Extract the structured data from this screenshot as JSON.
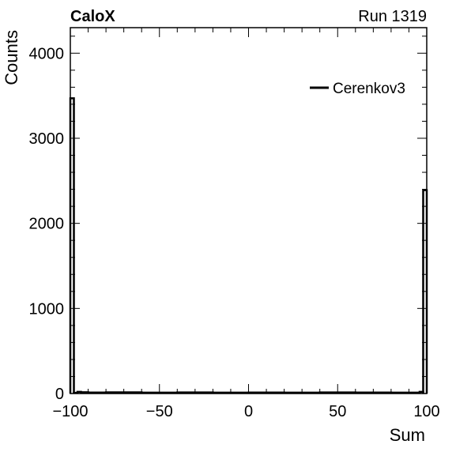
{
  "header": {
    "title": "CaloX",
    "run_label": "Run 1319"
  },
  "chart_data": {
    "type": "histogram",
    "title": "CaloX",
    "xlabel": "Sum",
    "ylabel": "Counts",
    "xlim": [
      -100,
      100
    ],
    "ylim": [
      0,
      4300
    ],
    "x_ticks": [
      -100,
      -50,
      0,
      50,
      100
    ],
    "x_tick_labels": [
      "−100",
      "−50",
      "0",
      "50",
      "100"
    ],
    "y_ticks": [
      0,
      1000,
      2000,
      3000,
      4000
    ],
    "y_tick_labels": [
      "0",
      "1000",
      "2000",
      "3000",
      "4000"
    ],
    "grid": false,
    "legend": {
      "position": "top-right",
      "entries": [
        "Cerenkov3"
      ]
    },
    "series": [
      {
        "name": "Cerenkov3",
        "color": "#000000",
        "bins": [
          {
            "x0": -100,
            "x1": -98,
            "value": 3470
          },
          {
            "x0": -98,
            "x1": -96,
            "value": 8
          },
          {
            "x0": -96,
            "x1": -94,
            "value": 20
          },
          {
            "x0": -94,
            "x1": -90,
            "value": 15
          },
          {
            "x0": -90,
            "x1": -80,
            "value": 12
          },
          {
            "x0": -80,
            "x1": -60,
            "value": 14
          },
          {
            "x0": -60,
            "x1": -40,
            "value": 10
          },
          {
            "x0": -40,
            "x1": -20,
            "value": 13
          },
          {
            "x0": -20,
            "x1": 0,
            "value": 11
          },
          {
            "x0": 0,
            "x1": 20,
            "value": 12
          },
          {
            "x0": 20,
            "x1": 40,
            "value": 10
          },
          {
            "x0": 40,
            "x1": 60,
            "value": 13
          },
          {
            "x0": 60,
            "x1": 80,
            "value": 12
          },
          {
            "x0": 80,
            "x1": 96,
            "value": 11
          },
          {
            "x0": 96,
            "x1": 98,
            "value": 20
          },
          {
            "x0": 98,
            "x1": 100,
            "value": 2390
          }
        ]
      }
    ]
  }
}
